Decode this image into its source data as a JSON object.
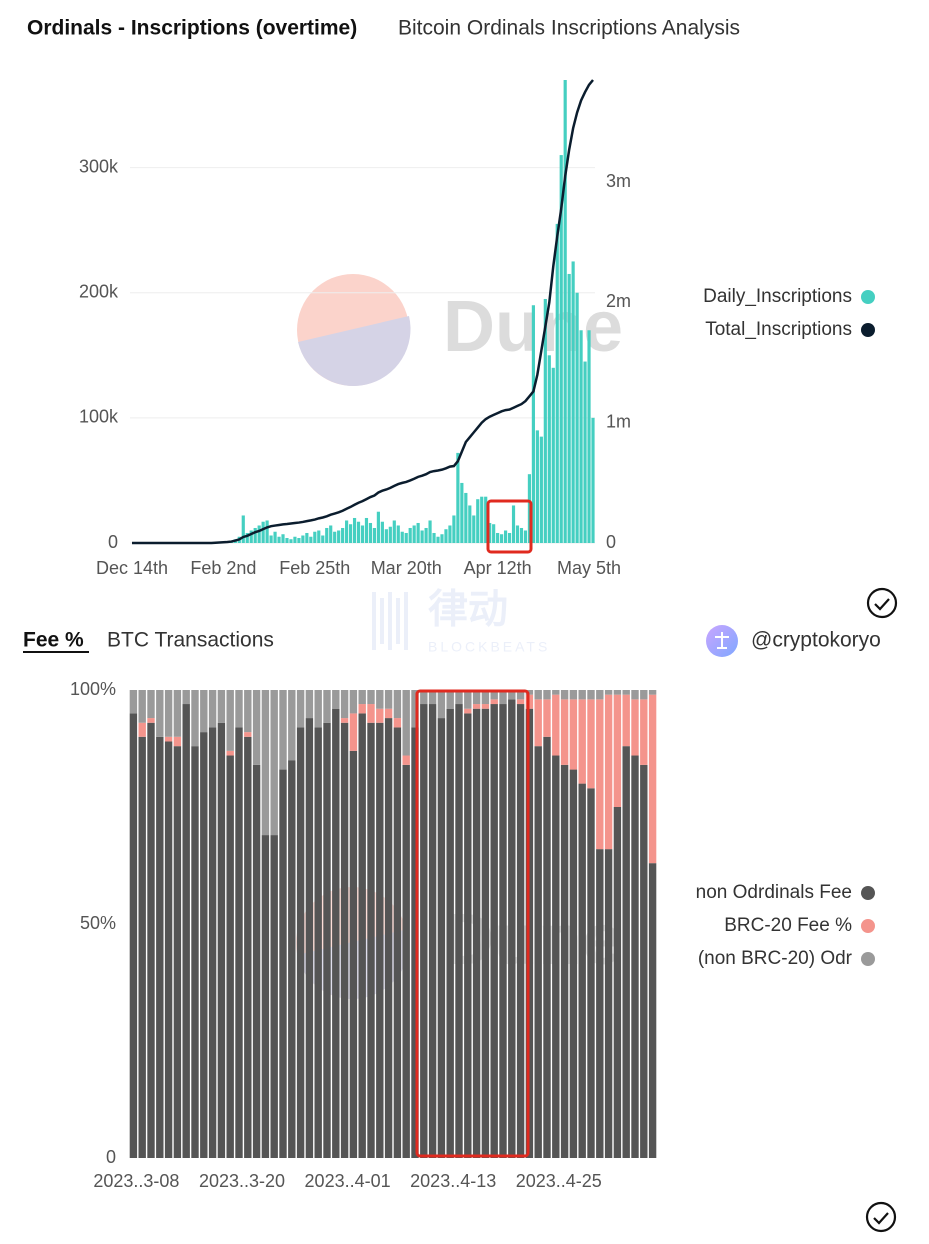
{
  "blockbeats_watermark": {
    "cn": "律动",
    "en": "BLOCKBEATS"
  },
  "chart_data": [
    {
      "type": "combo",
      "title": "Ordinals - Inscriptions (overtime)",
      "subtitle": "Bitcoin Ordinals Inscriptions Analysis",
      "watermark": "Dune",
      "categories": [
        "Dec 14th",
        null,
        null,
        null,
        null,
        null,
        null,
        null,
        null,
        null,
        null,
        null,
        null,
        null,
        null,
        null,
        null,
        null,
        null,
        null,
        null,
        null,
        null,
        "Feb 2nd",
        null,
        null,
        null,
        null,
        null,
        null,
        null,
        null,
        null,
        null,
        null,
        null,
        null,
        null,
        null,
        null,
        null,
        null,
        null,
        null,
        null,
        null,
        "Feb 25th",
        null,
        null,
        null,
        null,
        null,
        null,
        null,
        null,
        null,
        null,
        null,
        null,
        null,
        null,
        null,
        null,
        null,
        null,
        null,
        null,
        null,
        null,
        "Mar 20th",
        null,
        null,
        null,
        null,
        null,
        null,
        null,
        null,
        null,
        null,
        null,
        null,
        null,
        null,
        null,
        null,
        null,
        null,
        null,
        null,
        null,
        null,
        "Apr 12th",
        null,
        null,
        null,
        null,
        null,
        null,
        null,
        null,
        null,
        null,
        null,
        null,
        null,
        null,
        null,
        null,
        null,
        null,
        null,
        null,
        null,
        null,
        "May 5th",
        null
      ],
      "series": [
        {
          "name": "Daily_Inscriptions",
          "type": "bar",
          "color": "#45cfc1",
          "values": [
            0,
            0,
            0,
            0,
            0,
            0,
            0,
            0,
            0,
            0,
            0,
            0,
            0,
            0,
            0,
            0,
            0,
            0,
            0,
            0,
            0,
            0,
            0,
            0,
            0,
            1000,
            3000,
            5000,
            22000,
            8000,
            10000,
            12000,
            14000,
            17000,
            18000,
            6000,
            9000,
            5000,
            7000,
            4000,
            3000,
            5000,
            4000,
            6000,
            8000,
            5000,
            9000,
            10000,
            6000,
            12000,
            14000,
            9000,
            10000,
            12000,
            18000,
            15000,
            20000,
            17000,
            14000,
            20000,
            16000,
            12000,
            25000,
            17000,
            11000,
            13000,
            18000,
            14000,
            9000,
            8000,
            12000,
            14000,
            16000,
            10000,
            12000,
            18000,
            8000,
            5000,
            7000,
            11000,
            14000,
            22000,
            72000,
            48000,
            40000,
            30000,
            22000,
            35000,
            37000,
            37000,
            16000,
            15000,
            8000,
            7000,
            10000,
            8000,
            30000,
            14000,
            12000,
            10000,
            55000,
            190000,
            90000,
            85000,
            195000,
            150000,
            140000,
            255000,
            310000,
            370000,
            215000,
            225000,
            200000,
            170000,
            145000,
            170000,
            100000
          ]
        },
        {
          "name": "Total_Inscriptions",
          "type": "line",
          "axis": "y2",
          "color": "#0b1d2e",
          "values": [
            0,
            0,
            0,
            0,
            0,
            0,
            0,
            0,
            0,
            0,
            0,
            0,
            0,
            0,
            0,
            0,
            0,
            0,
            0,
            0,
            0,
            2000,
            4000,
            6000,
            8000,
            12000,
            20000,
            30000,
            50000,
            60000,
            75000,
            90000,
            100000,
            115000,
            130000,
            140000,
            145000,
            150000,
            155000,
            158000,
            162000,
            166000,
            170000,
            175000,
            182000,
            188000,
            195000,
            205000,
            212000,
            222000,
            235000,
            245000,
            255000,
            268000,
            285000,
            300000,
            318000,
            335000,
            348000,
            365000,
            382000,
            395000,
            420000,
            435000,
            445000,
            458000,
            475000,
            490000,
            500000,
            508000,
            520000,
            534000,
            550000,
            560000,
            572000,
            590000,
            598000,
            603000,
            610000,
            621000,
            635000,
            640000,
            680000,
            760000,
            840000,
            880000,
            920000,
            960000,
            1000000,
            1030000,
            1050000,
            1065000,
            1080000,
            1095000,
            1105000,
            1110000,
            1125000,
            1140000,
            1155000,
            1180000,
            1220000,
            1260000,
            1400000,
            1600000,
            1800000,
            2000000,
            2300000,
            2550000,
            2780000,
            3050000,
            3270000,
            3450000,
            3580000,
            3680000,
            3750000,
            3810000,
            3850000
          ]
        }
      ],
      "ylim": [
        0,
        370000
      ],
      "yticks": [
        0,
        {
          "value": 100000,
          "label": "100k"
        },
        {
          "value": 200000,
          "label": "200k"
        },
        {
          "value": 300000,
          "label": "300k"
        }
      ],
      "y2lim": [
        0,
        3850000
      ],
      "y2ticks": [
        0,
        {
          "value": 1000000,
          "label": "1m"
        },
        {
          "value": 2000000,
          "label": "2m"
        },
        {
          "value": 3000000,
          "label": "3m"
        }
      ],
      "grid": true,
      "legend": "right"
    },
    {
      "type": "stacked_bar",
      "title": "Fee %",
      "subtitle": "BTC Transactions",
      "author": "@cryptokoryo",
      "watermark": "Dune",
      "categories": [
        "2023..3-08",
        null,
        null,
        null,
        null,
        null,
        null,
        null,
        null,
        null,
        null,
        null,
        "2023..3-20",
        null,
        null,
        null,
        null,
        null,
        null,
        null,
        null,
        null,
        null,
        null,
        "2023..4-01",
        null,
        null,
        null,
        null,
        null,
        null,
        null,
        null,
        null,
        null,
        null,
        "2023..4-13",
        null,
        null,
        null,
        null,
        null,
        null,
        null,
        null,
        null,
        null,
        null,
        "2023..4-25",
        null,
        null,
        null,
        null,
        null,
        null,
        null,
        null,
        null,
        null,
        null
      ],
      "series": [
        {
          "name": "non Odrdinals Fee",
          "color": "#555555",
          "values": [
            95,
            90,
            93,
            90,
            89,
            88,
            97,
            88,
            91,
            92,
            93,
            86,
            92,
            90,
            84,
            69,
            69,
            83,
            85,
            92,
            94,
            92,
            93,
            96,
            93,
            87,
            95,
            93,
            93,
            94,
            92,
            84,
            92,
            97,
            97,
            94,
            96,
            97,
            95,
            96,
            96,
            97,
            97,
            98,
            97,
            96,
            88,
            90,
            86,
            84,
            83,
            80,
            79,
            66,
            66,
            75,
            88,
            86,
            84,
            63
          ]
        },
        {
          "name": "BRC-20 Fee %",
          "color": "#f4948c",
          "values": [
            0,
            3,
            1,
            0,
            1,
            2,
            0,
            0,
            0,
            0,
            0,
            1,
            0,
            1,
            0,
            0,
            0,
            0,
            0,
            0,
            0,
            0,
            0,
            0,
            1,
            8,
            2,
            4,
            3,
            2,
            2,
            2,
            0,
            0,
            0,
            0,
            0,
            0,
            1,
            1,
            1,
            1,
            0,
            0,
            1,
            3,
            10,
            8,
            13,
            14,
            15,
            18,
            19,
            32,
            33,
            24,
            11,
            12,
            14,
            36
          ]
        },
        {
          "name": "(non BRC-20) Odr",
          "color": "#9a9a9a",
          "values": [
            5,
            7,
            6,
            10,
            10,
            10,
            3,
            12,
            9,
            8,
            7,
            13,
            8,
            9,
            16,
            31,
            31,
            17,
            15,
            8,
            6,
            8,
            7,
            4,
            6,
            5,
            3,
            3,
            4,
            4,
            6,
            14,
            8,
            3,
            3,
            6,
            4,
            3,
            4,
            3,
            3,
            2,
            3,
            2,
            2,
            1,
            2,
            2,
            1,
            2,
            2,
            2,
            2,
            2,
            1,
            1,
            1,
            2,
            2,
            1
          ]
        }
      ],
      "ylim": [
        0,
        100
      ],
      "yticks": [
        0,
        {
          "value": 50,
          "label": "50%"
        },
        {
          "value": 100,
          "label": "100%"
        }
      ],
      "grid": false,
      "legend": "right"
    }
  ]
}
